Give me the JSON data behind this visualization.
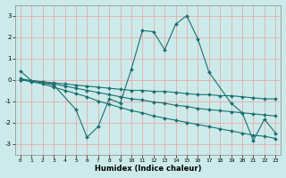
{
  "xlabel": "Humidex (Indice chaleur)",
  "xlim": [
    -0.5,
    23.5
  ],
  "ylim": [
    -3.5,
    3.5
  ],
  "yticks": [
    -3,
    -2,
    -1,
    0,
    1,
    2,
    3
  ],
  "xticks": [
    0,
    1,
    2,
    3,
    4,
    5,
    6,
    7,
    8,
    9,
    10,
    11,
    12,
    13,
    14,
    15,
    16,
    17,
    18,
    19,
    20,
    21,
    22,
    23
  ],
  "bg_color": "#cceaea",
  "grid_color": "#e8aaaa",
  "line_color": "#1a7070",
  "lines": [
    {
      "x": [
        0,
        1,
        2,
        3,
        5,
        6,
        7,
        8,
        9,
        10,
        11,
        12,
        13,
        14,
        15,
        16,
        17,
        19,
        20,
        21,
        22,
        23
      ],
      "y": [
        0.4,
        -0.05,
        -0.15,
        -0.25,
        -1.4,
        -2.7,
        -2.2,
        -0.9,
        -1.1,
        0.5,
        2.3,
        2.25,
        1.4,
        2.6,
        3.0,
        1.9,
        0.35,
        -1.1,
        -1.55,
        -2.85,
        -1.85,
        -2.5
      ]
    },
    {
      "x": [
        0,
        1,
        2,
        3,
        4,
        5,
        6,
        7,
        8,
        9,
        10,
        11,
        12,
        13,
        14,
        15,
        16,
        17,
        18,
        19,
        20,
        21,
        22,
        23
      ],
      "y": [
        0.05,
        -0.05,
        -0.1,
        -0.15,
        -0.2,
        -0.25,
        -0.3,
        -0.35,
        -0.4,
        -0.45,
        -0.5,
        -0.5,
        -0.55,
        -0.55,
        -0.6,
        -0.65,
        -0.7,
        -0.7,
        -0.75,
        -0.75,
        -0.8,
        -0.85,
        -0.9,
        -0.9
      ]
    },
    {
      "x": [
        0,
        1,
        2,
        3,
        4,
        5,
        6,
        7,
        8,
        9,
        10,
        11,
        12,
        13,
        14,
        15,
        16,
        17,
        18,
        19,
        20,
        21,
        22,
        23
      ],
      "y": [
        0.0,
        -0.05,
        -0.1,
        -0.2,
        -0.3,
        -0.4,
        -0.5,
        -0.6,
        -0.7,
        -0.8,
        -0.9,
        -0.95,
        -1.05,
        -1.1,
        -1.2,
        -1.25,
        -1.35,
        -1.4,
        -1.45,
        -1.5,
        -1.55,
        -1.6,
        -1.65,
        -1.7
      ]
    },
    {
      "x": [
        0,
        1,
        2,
        3,
        4,
        5,
        6,
        7,
        8,
        9,
        10,
        11,
        12,
        13,
        14,
        15,
        16,
        17,
        18,
        19,
        20,
        21,
        22,
        23
      ],
      "y": [
        0.0,
        -0.1,
        -0.2,
        -0.35,
        -0.5,
        -0.65,
        -0.8,
        -1.0,
        -1.15,
        -1.3,
        -1.45,
        -1.55,
        -1.7,
        -1.8,
        -1.9,
        -2.0,
        -2.1,
        -2.2,
        -2.3,
        -2.4,
        -2.5,
        -2.6,
        -2.65,
        -2.75
      ]
    }
  ]
}
